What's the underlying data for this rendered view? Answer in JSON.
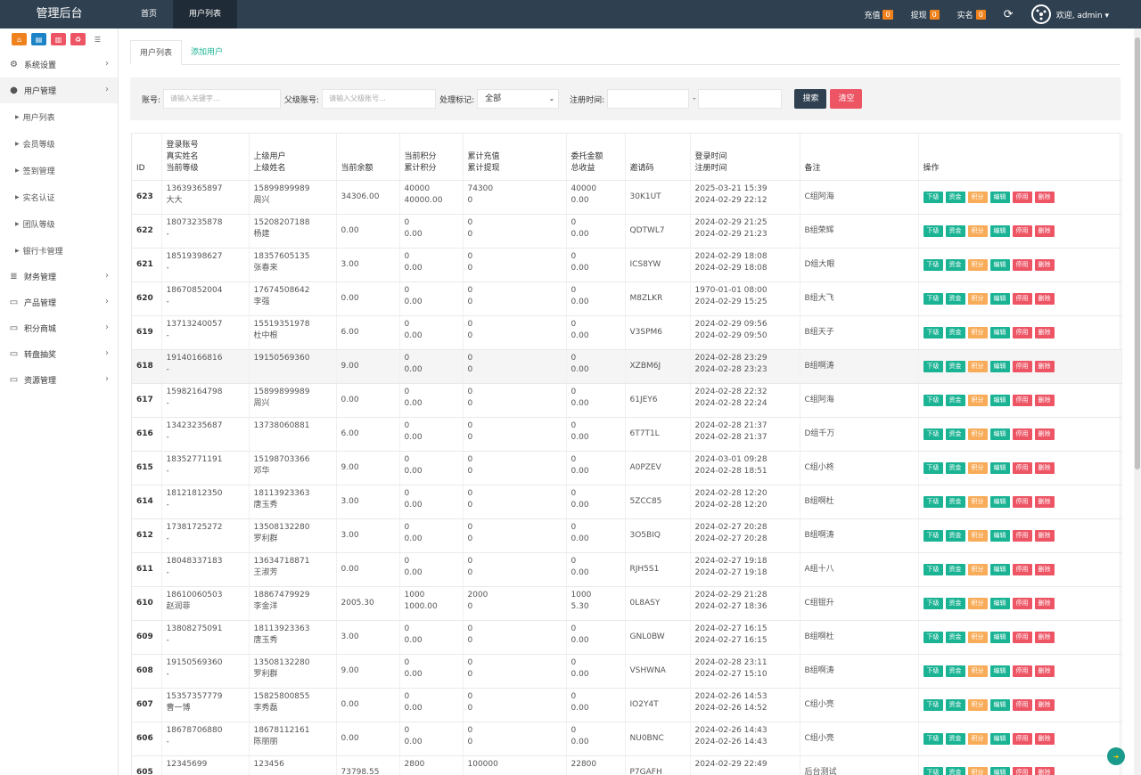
{
  "header": {
    "brand": "管理后台",
    "nav": [
      {
        "label": "首页"
      },
      {
        "label": "用户列表"
      }
    ],
    "recharge": {
      "label": "充值",
      "count": "0"
    },
    "withdraw": {
      "label": "提现",
      "count": "0"
    },
    "realname": {
      "label": "实名",
      "count": "0"
    },
    "welcome": "欢迎, admin ▾"
  },
  "sidebar": {
    "quick_buttons": [
      {
        "icon": "home-icon",
        "color": "#f0821e"
      },
      {
        "icon": "file-icon",
        "color": "#1c84c6"
      },
      {
        "icon": "trash-icon",
        "color": "#ed5565"
      },
      {
        "icon": "recycle-icon",
        "color": "#ed5565"
      },
      {
        "icon": "list-icon",
        "color": "#ffffff"
      }
    ],
    "menu": [
      {
        "label": "系统设置",
        "icon": "gears-icon"
      },
      {
        "label": "用户管理",
        "icon": "user-icon",
        "children": [
          "用户列表",
          "会员等级",
          "签到管理",
          "实名认证",
          "团队等级",
          "银行卡管理"
        ]
      },
      {
        "label": "财务管理",
        "icon": "database-icon"
      },
      {
        "label": "产品管理",
        "icon": "monitor-icon"
      },
      {
        "label": "积分商城",
        "icon": "monitor-icon"
      },
      {
        "label": "转盘抽奖",
        "icon": "monitor-icon"
      },
      {
        "label": "资源管理",
        "icon": "monitor-icon"
      }
    ]
  },
  "main": {
    "tabs": [
      {
        "label": "用户列表"
      },
      {
        "label": "添加用户"
      }
    ],
    "filter": {
      "account_label": "账号:",
      "account_placeholder": "请输入关键字...",
      "parent_label": "父级账号:",
      "parent_placeholder": "请输入父级账号...",
      "mark_label": "处理标记:",
      "mark_value": "全部",
      "date_label": "注册时间:",
      "date_sep": "-",
      "search": "搜索",
      "clear": "清空"
    },
    "columns": [
      "ID",
      "登录账号\n真实姓名\n当前等级",
      "上级用户\n上级姓名",
      "当前余额",
      "当前积分\n累计积分",
      "累计充值\n累计提现",
      "委托金额\n总收益",
      "邀请码",
      "登录时间\n注册时间",
      "备注",
      "操作"
    ],
    "actions": [
      {
        "label": "下级",
        "color": "#1ab394"
      },
      {
        "label": "资金",
        "color": "#1ab394"
      },
      {
        "label": "积分",
        "color": "#f8ac59"
      },
      {
        "label": "编辑",
        "color": "#1ab394"
      },
      {
        "label": "停用",
        "color": "#ed5565"
      },
      {
        "label": "删除",
        "color": "#ed5565"
      }
    ],
    "rows": [
      {
        "id": "623",
        "account": "13639365897",
        "name": "大大",
        "parent": "15899899989",
        "parent_name": "周兴",
        "balance": "34306.00",
        "points": "40000",
        "total_points": "40000.00",
        "recharge": "74300",
        "withdraw": "0",
        "entrust": "40000",
        "profit": "0.00",
        "code": "30K1UT",
        "login": "2025-03-21 15:39",
        "reg": "2024-02-29 22:12",
        "remark": "C组阿海"
      },
      {
        "id": "622",
        "account": "18073235878",
        "name": "-",
        "parent": "15208207188",
        "parent_name": "杨建",
        "balance": "0.00",
        "points": "0",
        "total_points": "0.00",
        "recharge": "0",
        "withdraw": "0",
        "entrust": "0",
        "profit": "0.00",
        "code": "QDTWL7",
        "login": "2024-02-29 21:25",
        "reg": "2024-02-29 21:23",
        "remark": "B组荣辉"
      },
      {
        "id": "621",
        "account": "18519398627",
        "name": "-",
        "parent": "18357605135",
        "parent_name": "张春来",
        "balance": "3.00",
        "points": "0",
        "total_points": "0.00",
        "recharge": "0",
        "withdraw": "0",
        "entrust": "0",
        "profit": "0.00",
        "code": "ICS8YW",
        "login": "2024-02-29 18:08",
        "reg": "2024-02-29 18:08",
        "remark": "D组大眼"
      },
      {
        "id": "620",
        "account": "18670852004",
        "name": "-",
        "parent": "17674508642",
        "parent_name": "李强",
        "balance": "0.00",
        "points": "0",
        "total_points": "0.00",
        "recharge": "0",
        "withdraw": "0",
        "entrust": "0",
        "profit": "0.00",
        "code": "M8ZLKR",
        "login": "1970-01-01 08:00",
        "reg": "2024-02-29 15:25",
        "remark": "B组大飞"
      },
      {
        "id": "619",
        "account": "13713240057",
        "name": "-",
        "parent": "15519351978",
        "parent_name": "杜中根",
        "balance": "6.00",
        "points": "0",
        "total_points": "0.00",
        "recharge": "0",
        "withdraw": "0",
        "entrust": "0",
        "profit": "0.00",
        "code": "V3SPM6",
        "login": "2024-02-29 09:56",
        "reg": "2024-02-29 09:50",
        "remark": "B组天子"
      },
      {
        "id": "618",
        "account": "19140166816",
        "name": "-",
        "parent": "19150569360",
        "parent_name": "",
        "balance": "9.00",
        "points": "0",
        "total_points": "0.00",
        "recharge": "0",
        "withdraw": "0",
        "entrust": "0",
        "profit": "0.00",
        "code": "XZBM6J",
        "login": "2024-02-28 23:29",
        "reg": "2024-02-28 23:23",
        "remark": "B组啊涛"
      },
      {
        "id": "617",
        "account": "15982164798",
        "name": "-",
        "parent": "15899899989",
        "parent_name": "周兴",
        "balance": "0.00",
        "points": "0",
        "total_points": "0.00",
        "recharge": "0",
        "withdraw": "0",
        "entrust": "0",
        "profit": "0.00",
        "code": "61JEY6",
        "login": "2024-02-28 22:32",
        "reg": "2024-02-28 22:24",
        "remark": "C组阿海"
      },
      {
        "id": "616",
        "account": "13423235687",
        "name": "-",
        "parent": "13738060881",
        "parent_name": "",
        "balance": "6.00",
        "points": "0",
        "total_points": "0.00",
        "recharge": "0",
        "withdraw": "0",
        "entrust": "0",
        "profit": "0.00",
        "code": "6T7T1L",
        "login": "2024-02-28 21:37",
        "reg": "2024-02-28 21:37",
        "remark": "D组千万"
      },
      {
        "id": "615",
        "account": "18352771191",
        "name": "-",
        "parent": "15198703366",
        "parent_name": "邓华",
        "balance": "9.00",
        "points": "0",
        "total_points": "0.00",
        "recharge": "0",
        "withdraw": "0",
        "entrust": "0",
        "profit": "0.00",
        "code": "A0PZEV",
        "login": "2024-03-01 09:28",
        "reg": "2024-02-28 18:51",
        "remark": "C组小柊"
      },
      {
        "id": "614",
        "account": "18121812350",
        "name": "-",
        "parent": "18113923363",
        "parent_name": "唐玉秀",
        "balance": "3.00",
        "points": "0",
        "total_points": "0.00",
        "recharge": "0",
        "withdraw": "0",
        "entrust": "0",
        "profit": "0.00",
        "code": "5ZCC85",
        "login": "2024-02-28 12:20",
        "reg": "2024-02-28 12:20",
        "remark": "B组啊杜"
      },
      {
        "id": "612",
        "account": "17381725272",
        "name": "-",
        "parent": "13508132280",
        "parent_name": "罗利群",
        "balance": "3.00",
        "points": "0",
        "total_points": "0.00",
        "recharge": "0",
        "withdraw": "0",
        "entrust": "0",
        "profit": "0.00",
        "code": "3O5BIQ",
        "login": "2024-02-27 20:28",
        "reg": "2024-02-27 20:28",
        "remark": "B组啊涛"
      },
      {
        "id": "611",
        "account": "18048337183",
        "name": "-",
        "parent": "13634718871",
        "parent_name": "王淑芳",
        "balance": "0.00",
        "points": "0",
        "total_points": "0.00",
        "recharge": "0",
        "withdraw": "0",
        "entrust": "0",
        "profit": "0.00",
        "code": "RJH5S1",
        "login": "2024-02-27 19:18",
        "reg": "2024-02-27 19:18",
        "remark": "A组十八"
      },
      {
        "id": "610",
        "account": "18610060503",
        "name": "赵润菲",
        "parent": "18867479929",
        "parent_name": "李金洋",
        "balance": "2005.30",
        "points": "1000",
        "total_points": "1000.00",
        "recharge": "2000",
        "withdraw": "0",
        "entrust": "1000",
        "profit": "5.30",
        "code": "0L8ASY",
        "login": "2024-02-29 21:28",
        "reg": "2024-02-27 18:36",
        "remark": "C组锟升"
      },
      {
        "id": "609",
        "account": "13808275091",
        "name": "-",
        "parent": "18113923363",
        "parent_name": "唐玉秀",
        "balance": "3.00",
        "points": "0",
        "total_points": "0.00",
        "recharge": "0",
        "withdraw": "0",
        "entrust": "0",
        "profit": "0.00",
        "code": "GNL0BW",
        "login": "2024-02-27 16:15",
        "reg": "2024-02-27 16:15",
        "remark": "B组啊杜"
      },
      {
        "id": "608",
        "account": "19150569360",
        "name": "-",
        "parent": "13508132280",
        "parent_name": "罗利群",
        "balance": "9.00",
        "points": "0",
        "total_points": "0.00",
        "recharge": "0",
        "withdraw": "0",
        "entrust": "0",
        "profit": "0.00",
        "code": "VSHWNA",
        "login": "2024-02-28 23:11",
        "reg": "2024-02-27 15:10",
        "remark": "B组啊涛"
      },
      {
        "id": "607",
        "account": "15357357779",
        "name": "曹一博",
        "parent": "15825800855",
        "parent_name": "李秀磊",
        "balance": "0.00",
        "points": "0",
        "total_points": "0.00",
        "recharge": "0",
        "withdraw": "0",
        "entrust": "0",
        "profit": "0.00",
        "code": "IO2Y4T",
        "login": "2024-02-26 14:53",
        "reg": "2024-02-26 14:52",
        "remark": "C组小亮"
      },
      {
        "id": "606",
        "account": "18678706880",
        "name": "-",
        "parent": "18678112161",
        "parent_name": "陈丽丽",
        "balance": "0.00",
        "points": "0",
        "total_points": "0.00",
        "recharge": "0",
        "withdraw": "0",
        "entrust": "0",
        "profit": "0.00",
        "code": "NU0BNC",
        "login": "2024-02-26 14:43",
        "reg": "2024-02-26 14:43",
        "remark": "C组小亮"
      },
      {
        "id": "605",
        "account": "12345699",
        "name": "",
        "parent": "123456",
        "parent_name": "",
        "balance": "73798.55",
        "points": "2800",
        "total_points": "",
        "recharge": "100000",
        "withdraw": "",
        "entrust": "22800",
        "profit": "",
        "code": "P7GAFH",
        "login": "2024-02-29 22:49",
        "reg": "",
        "remark": "后台测试"
      }
    ]
  }
}
